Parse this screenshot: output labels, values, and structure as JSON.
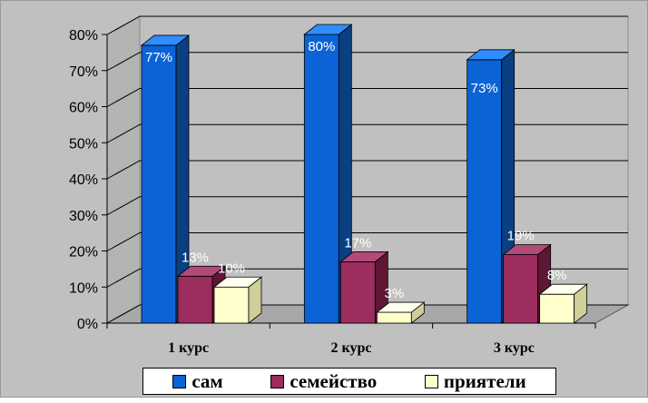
{
  "chart_data": {
    "type": "bar",
    "categories": [
      "1 курс",
      "2 курс",
      "3 курс"
    ],
    "series": [
      {
        "name": "сам",
        "values": [
          77,
          80,
          73
        ],
        "labels": [
          "77%",
          "80%",
          "73%"
        ],
        "color": "#0b63d6",
        "side": "#0a3f82",
        "top": "#2f8dff"
      },
      {
        "name": "семейство",
        "values": [
          13,
          17,
          19
        ],
        "labels": [
          "13%",
          "17%",
          "19%"
        ],
        "color": "#9b2d5f",
        "side": "#5e1635",
        "top": "#b24a78"
      },
      {
        "name": "приятели",
        "values": [
          10,
          3,
          8
        ],
        "labels": [
          "10%",
          "3%",
          "8%"
        ],
        "color": "#ffffcc",
        "side": "#cfcf9a",
        "top": "#ffffee"
      }
    ],
    "ylim": [
      0,
      80
    ],
    "yticks": [
      "0%",
      "10%",
      "20%",
      "30%",
      "40%",
      "50%",
      "60%",
      "70%",
      "80%"
    ],
    "grid": true,
    "legend": "bottom",
    "three_d": true
  }
}
